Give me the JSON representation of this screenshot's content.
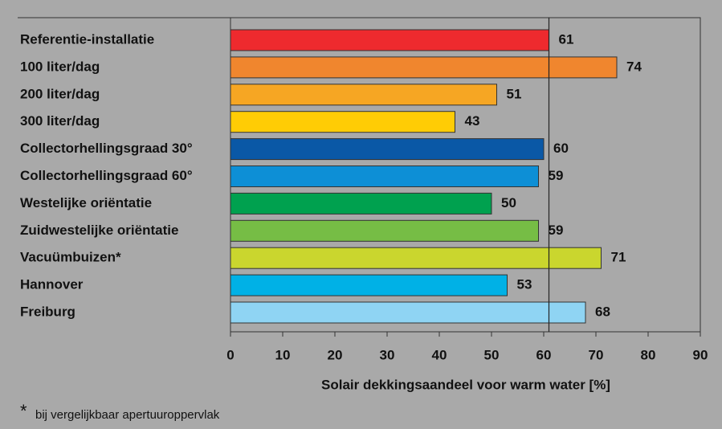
{
  "chart_data": {
    "type": "bar",
    "orientation": "horizontal",
    "categories": [
      "Referentie-installatie",
      "100 liter/dag",
      "200 liter/dag",
      "300 liter/dag",
      "Collectorhellingsgraad 30°",
      "Collectorhellingsgraad 60°",
      "Westelijke oriëntatie",
      "Zuidwestelijke oriëntatie",
      "Vacuümbuizen*",
      "Hannover",
      "Freiburg"
    ],
    "values": [
      61,
      74,
      51,
      43,
      60,
      59,
      50,
      59,
      71,
      53,
      68
    ],
    "colors": [
      "#ee2a2e",
      "#f0862e",
      "#f6a623",
      "#ffcc05",
      "#0a58a6",
      "#0d8fd6",
      "#00a14f",
      "#76bd45",
      "#cad62e",
      "#00b1e6",
      "#8fd4f3"
    ],
    "xlim": [
      0,
      90
    ],
    "xticks": [
      0,
      10,
      20,
      30,
      40,
      50,
      60,
      70,
      80,
      90
    ],
    "reference_line": 61,
    "xlabel": "Solair dekkingsaandeel voor warm water [%]",
    "footnote": {
      "marker": "*",
      "text": "bij vergelijkbaar apertuuroppervlak"
    }
  }
}
